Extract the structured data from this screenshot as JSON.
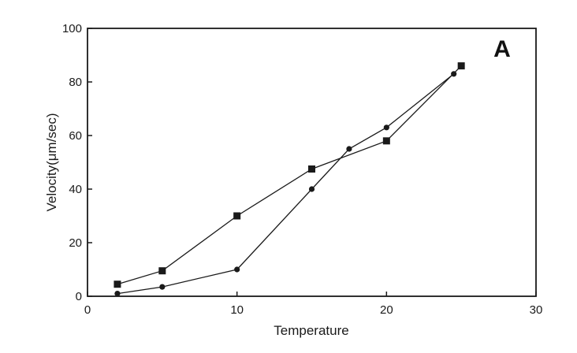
{
  "chart_data": {
    "type": "line",
    "title": "",
    "panel_label": "A",
    "xlabel": "Temperature",
    "ylabel": "Velocity(μm/sec)",
    "xlim": [
      0,
      30
    ],
    "ylim": [
      0,
      100
    ],
    "x_ticks": [
      "0",
      "10",
      "20",
      "30"
    ],
    "y_ticks": [
      "0",
      "20",
      "40",
      "60",
      "80",
      "100"
    ],
    "grid": false,
    "legend": "none",
    "series": [
      {
        "name": "squares",
        "marker": "square",
        "x": [
          2,
          5,
          10,
          15,
          20,
          25
        ],
        "values": [
          4.5,
          9.5,
          30,
          47.5,
          58,
          86
        ]
      },
      {
        "name": "circles",
        "marker": "circle",
        "x": [
          2,
          5,
          10,
          15,
          17.5,
          20,
          24.5
        ],
        "values": [
          1,
          3.5,
          10,
          40,
          55,
          63,
          83
        ]
      }
    ],
    "colors": {
      "ink": "#1a1a1a",
      "background": "#ffffff"
    }
  }
}
